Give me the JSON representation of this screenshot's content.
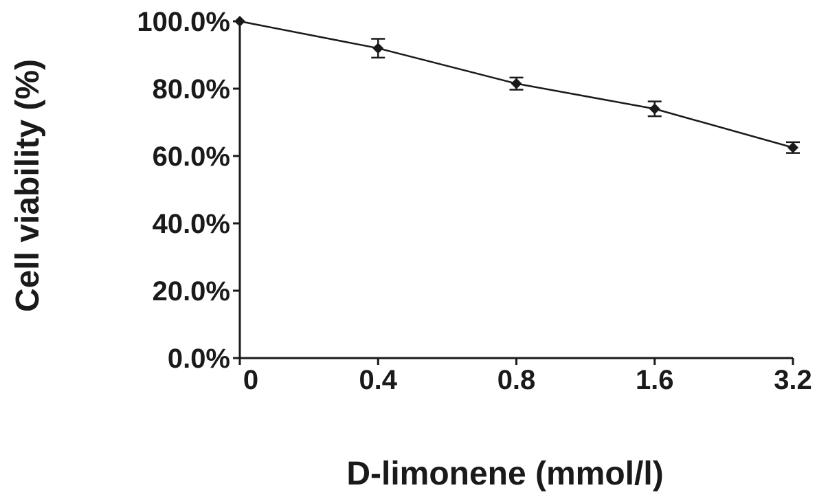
{
  "chart_data": {
    "type": "line",
    "title": "",
    "xlabel": "D-limonene (mmol/l)",
    "ylabel": "Cell viability (%)",
    "categories": [
      "0",
      "0.4",
      "0.8",
      "1.6",
      "3.2"
    ],
    "series": [
      {
        "values": [
          100.0,
          92.0,
          81.5,
          74.0,
          62.5
        ],
        "error": [
          0.0,
          2.8,
          1.8,
          2.2,
          1.6
        ]
      }
    ],
    "yticks": [
      "0.0%",
      "20.0%",
      "40.0%",
      "60.0%",
      "80.0%",
      "100.0%"
    ],
    "ylim": [
      0,
      100
    ],
    "grid": false,
    "legend": "none",
    "colors": {
      "line": "#1a1a1a",
      "axis": "#1a1a1a"
    }
  }
}
